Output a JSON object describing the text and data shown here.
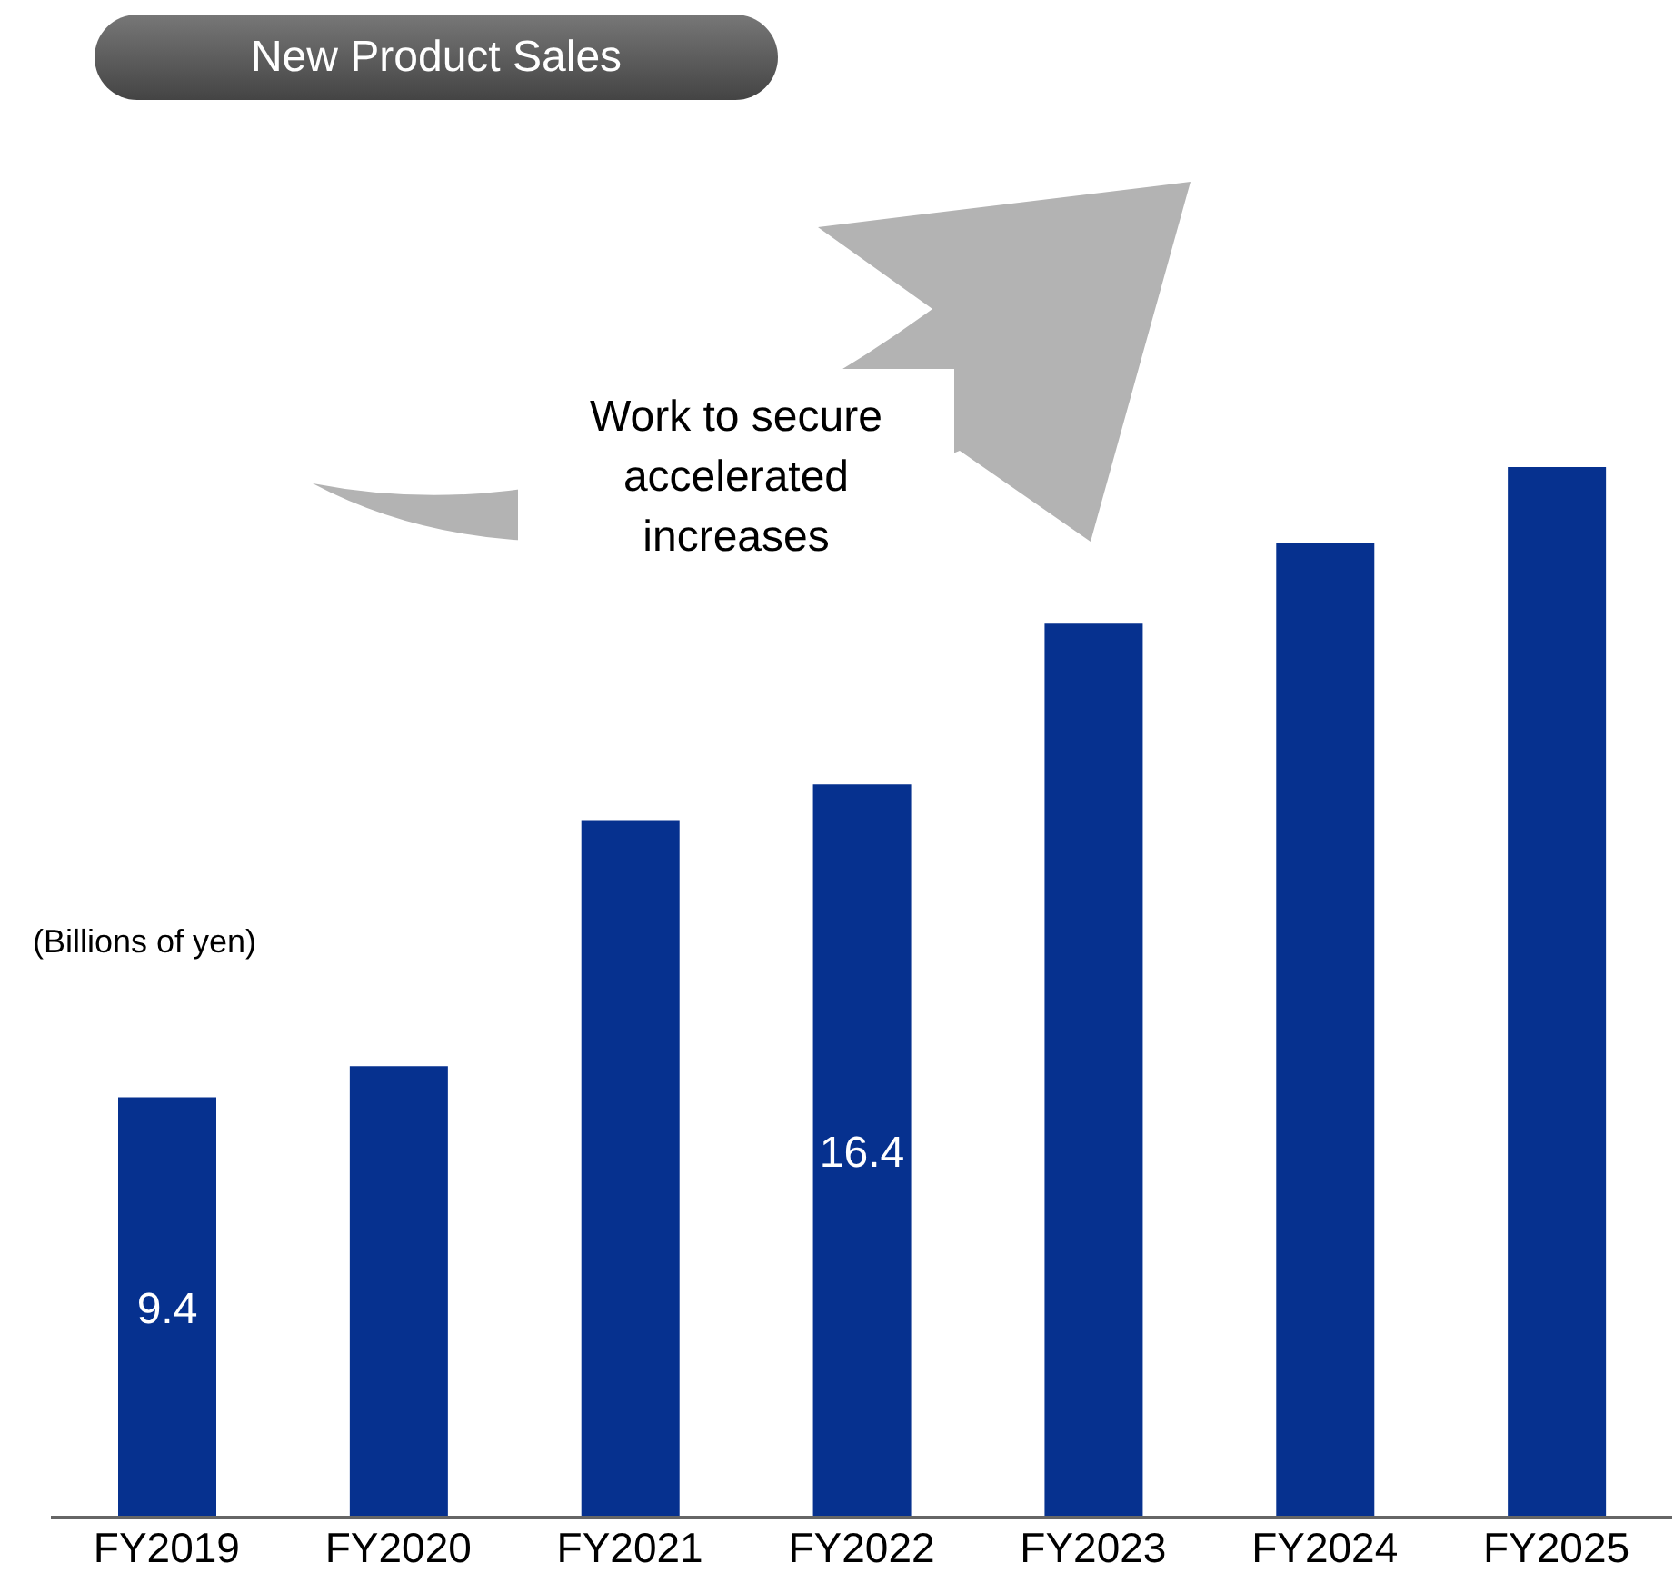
{
  "chart_data": {
    "type": "bar",
    "title": "New Product Sales",
    "ylabel": "(Billions of yen)",
    "annotations": [
      "Work to secure accelerated increases"
    ],
    "categories": [
      "FY2019",
      "FY2020",
      "FY2021",
      "FY2022",
      "FY2023",
      "FY2024",
      "FY2025"
    ],
    "values": [
      9.4,
      10.1,
      15.6,
      16.4,
      20.0,
      21.8,
      23.5
    ],
    "value_labels": [
      "9.4",
      null,
      null,
      "16.4",
      null,
      null,
      null
    ],
    "color": "#06318f"
  }
}
